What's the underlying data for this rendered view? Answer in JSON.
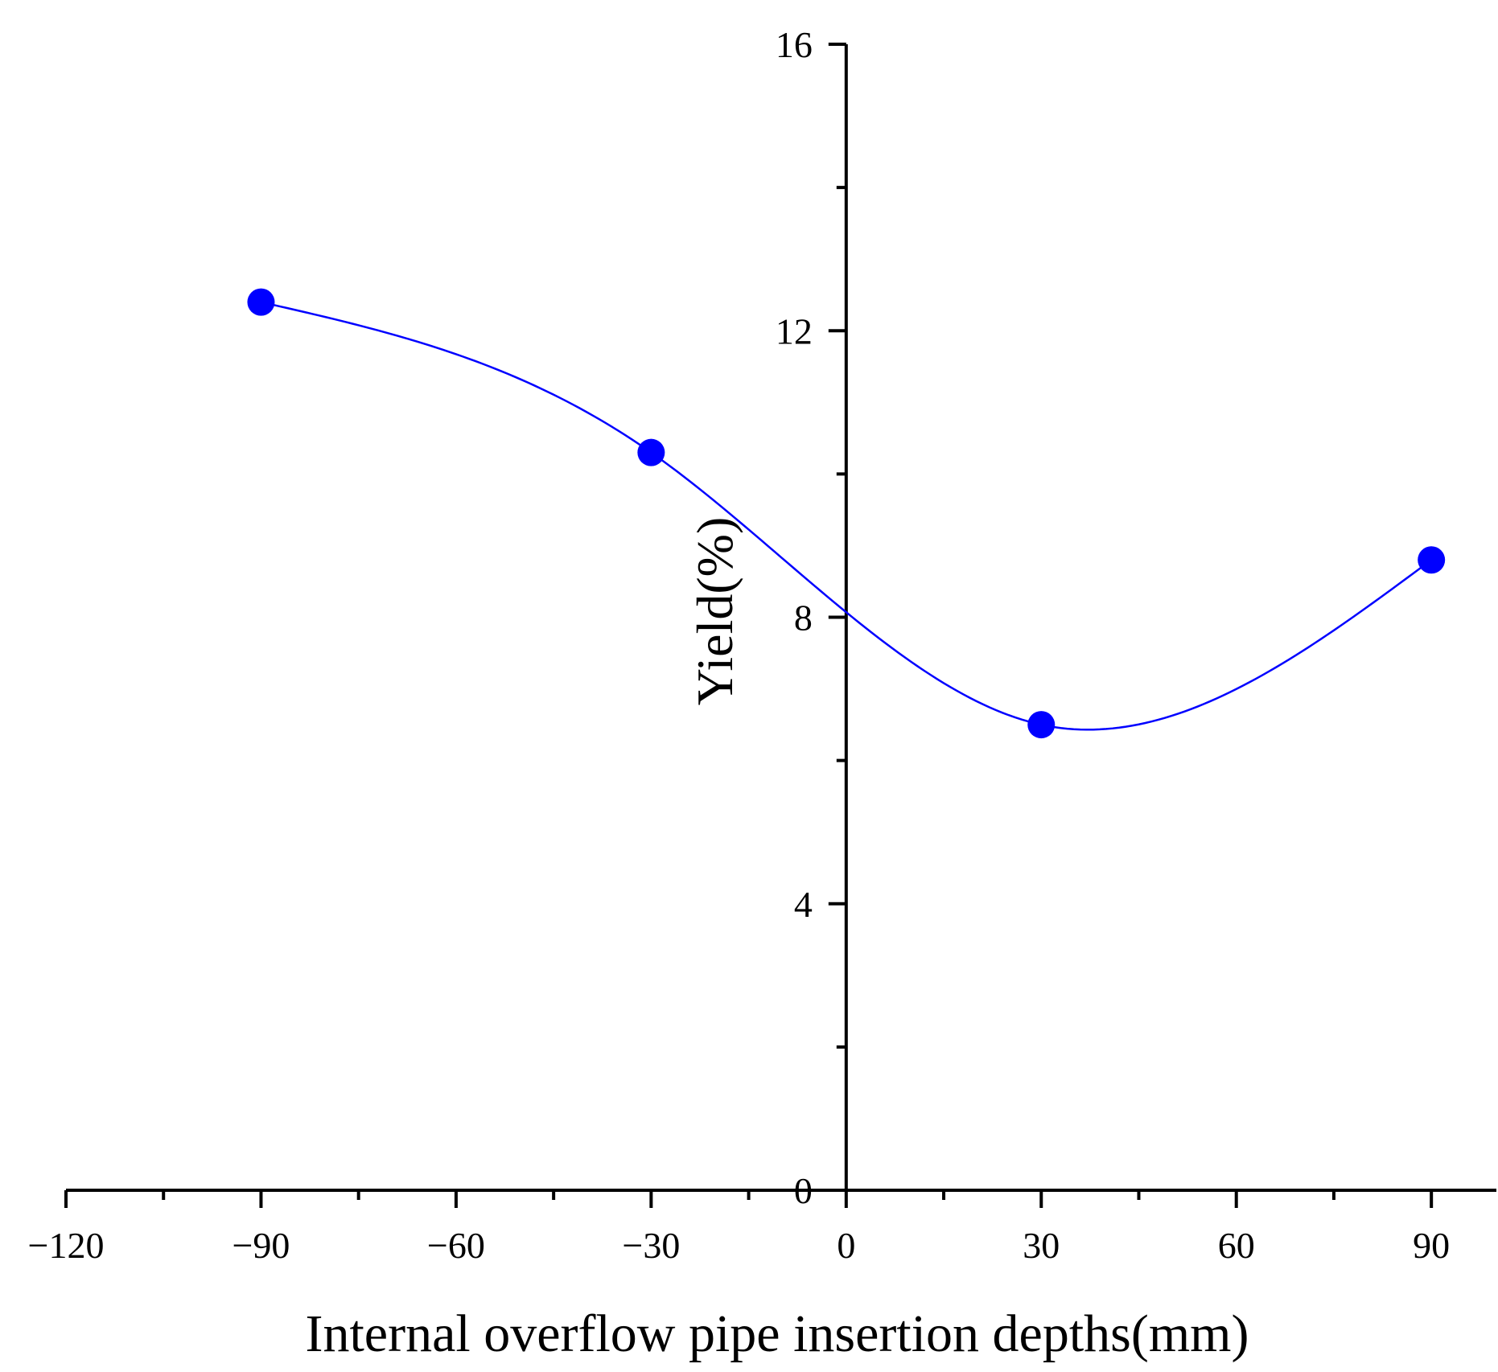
{
  "chart_data": {
    "type": "line",
    "title": "",
    "xlabel": "Internal overflow pipe insertion depths(mm)",
    "ylabel": "Yield(%)",
    "xlim": [
      -120,
      100
    ],
    "ylim": [
      0,
      16
    ],
    "xticks": [
      -120,
      -90,
      -60,
      -30,
      0,
      30,
      60,
      90
    ],
    "xtick_labels": [
      "−120",
      "−90",
      "−60",
      "−30",
      "0",
      "30",
      "60",
      "90"
    ],
    "yticks": [
      0,
      4,
      8,
      12,
      16
    ],
    "ytick_labels": [
      "0",
      "4",
      "8",
      "12",
      "16"
    ],
    "grid": false,
    "series": [
      {
        "name": "Yield",
        "color": "#0000ff",
        "smooth": true,
        "x": [
          -90,
          -30,
          30,
          90
        ],
        "values": [
          12.4,
          10.3,
          6.5,
          8.8
        ]
      }
    ]
  }
}
